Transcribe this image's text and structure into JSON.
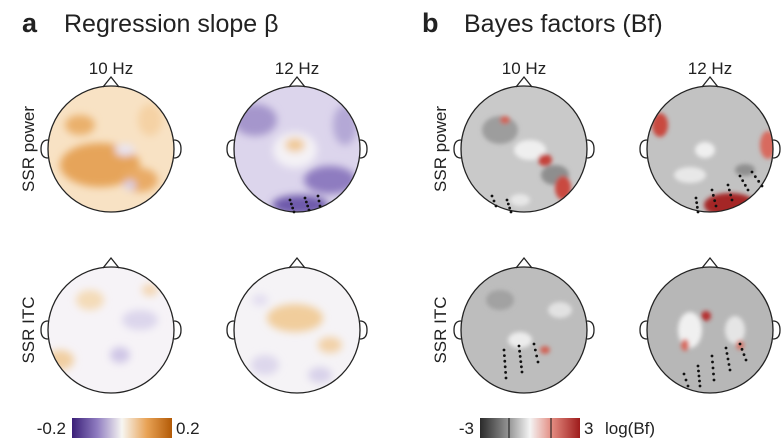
{
  "panels": [
    {
      "letter": "a",
      "title": "Regression slope β",
      "columns": [
        "10 Hz",
        "12 Hz"
      ],
      "rows": [
        "SSR power",
        "SSR ITC"
      ],
      "colorbar": {
        "min_label": "-0.2",
        "max_label": "0.2",
        "unit": "",
        "colors": [
          "#3a1f78",
          "#8f7cc0",
          "#f7f6f2",
          "#e8a255",
          "#b35a06"
        ]
      }
    },
    {
      "letter": "b",
      "title": "Bayes factors (Bf)",
      "columns": [
        "10 Hz",
        "12 Hz"
      ],
      "rows": [
        "SSR power",
        "SSR ITC"
      ],
      "colorbar": {
        "min_label": "-3",
        "max_label": "3",
        "unit": "log(Bf)",
        "colors": [
          "#2a2a2a",
          "#9a9a9a",
          "#f4f4f4",
          "#e38b80",
          "#9e1b1b"
        ]
      }
    }
  ],
  "colors": {
    "purple": "#6b57aa",
    "orange": "#dc8e30",
    "red": "#b8262a",
    "gray": "#8c8c8c"
  }
}
